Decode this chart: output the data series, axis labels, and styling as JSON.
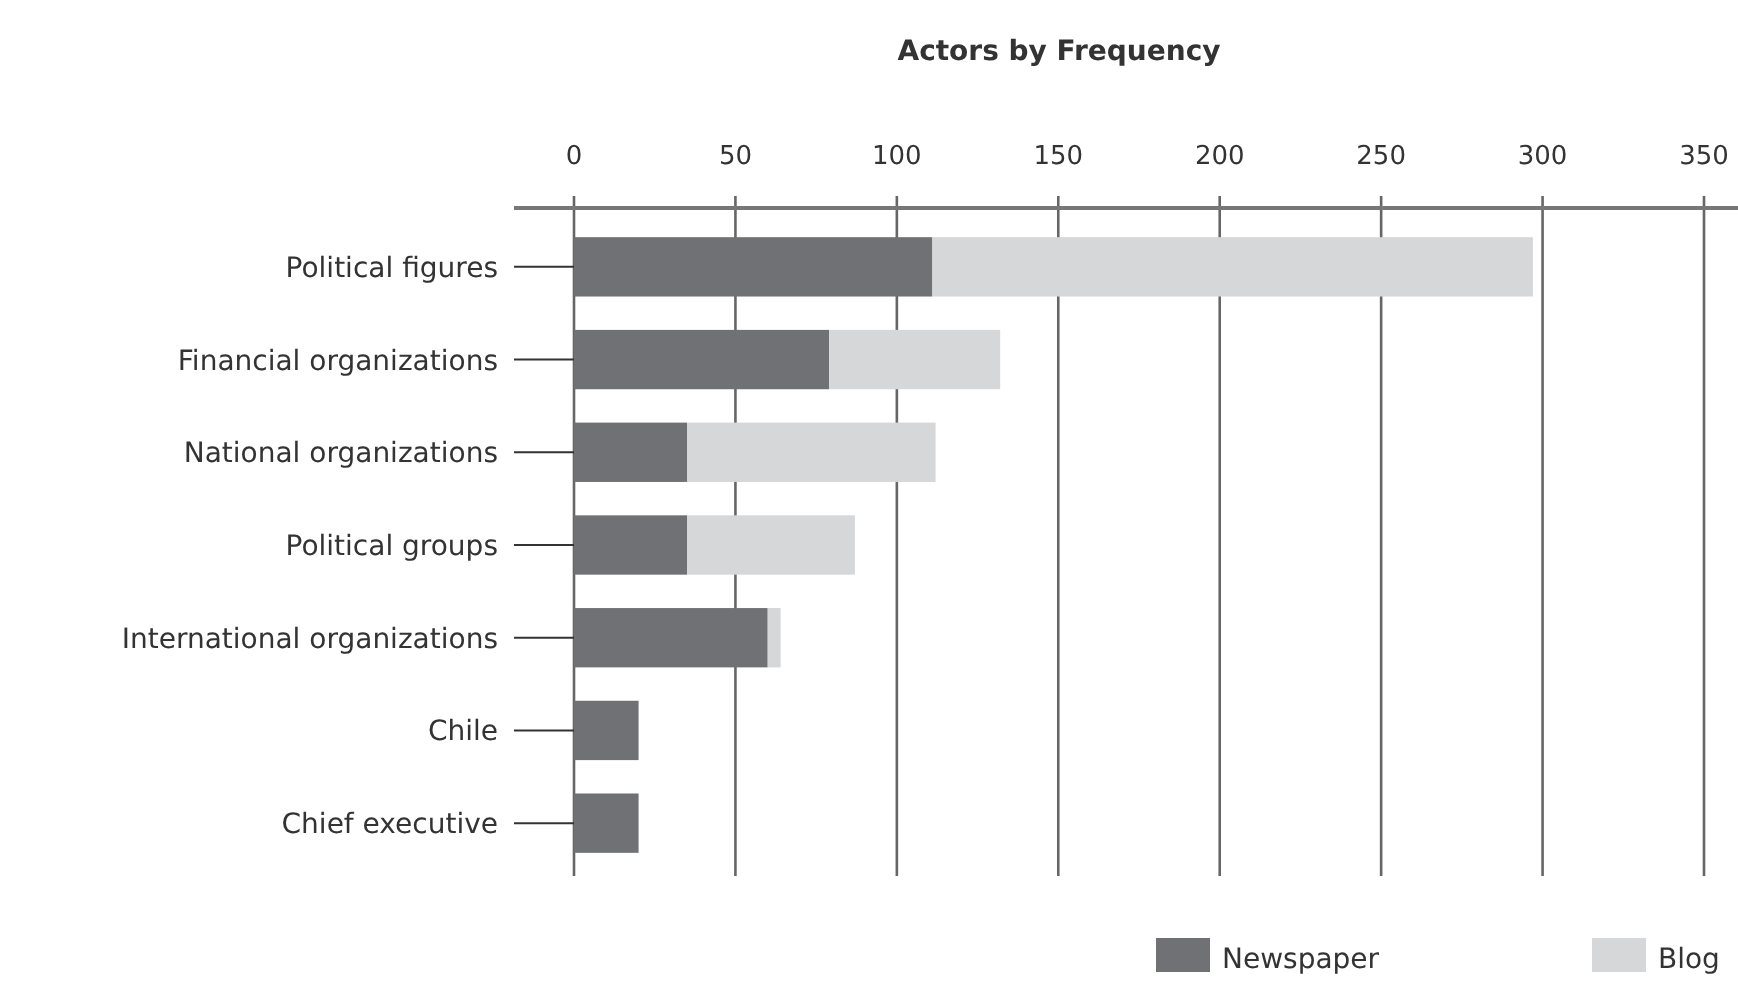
{
  "chart_data": {
    "type": "bar",
    "title": "Actors by Frequency",
    "orientation": "horizontal",
    "stacked": true,
    "categories": [
      "Political figures",
      "Financial organizations",
      "National organizations",
      "Political groups",
      "International organizations",
      "Chile",
      "Chief executive"
    ],
    "series": [
      {
        "name": "Newspaper",
        "color": "#707174",
        "values": [
          111,
          79,
          35,
          35,
          60,
          20,
          20
        ]
      },
      {
        "name": "Blog",
        "color": "#d6d7d9",
        "values": [
          186,
          53,
          77,
          52,
          4,
          0,
          0
        ]
      }
    ],
    "xlim": [
      0,
      350
    ],
    "xticks": [
      0,
      50,
      100,
      150,
      200,
      250,
      300,
      350
    ],
    "grid": "x",
    "legend": "bottom right"
  }
}
